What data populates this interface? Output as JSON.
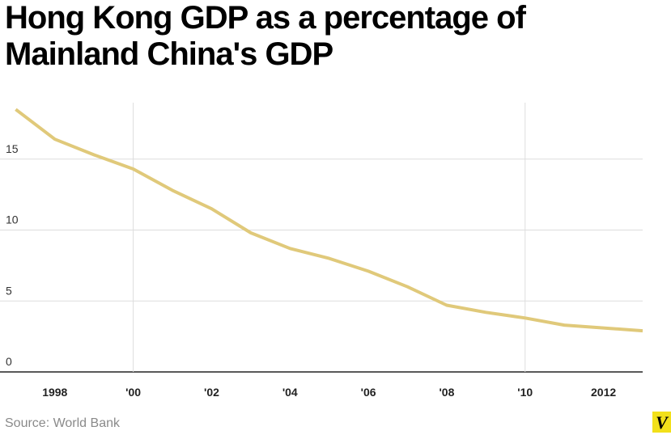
{
  "chart_data": {
    "type": "line",
    "title": "Hong Kong GDP as a percentage of Mainland China's GDP",
    "xlabel": "",
    "ylabel": "",
    "x": [
      1997,
      1998,
      1999,
      2000,
      2001,
      2002,
      2003,
      2004,
      2005,
      2006,
      2007,
      2008,
      2009,
      2010,
      2011,
      2012,
      2013
    ],
    "series": [
      {
        "name": "Hong Kong GDP as % of Mainland China GDP",
        "color": "#e0c97a",
        "values": [
          18.5,
          16.4,
          15.3,
          14.3,
          12.8,
          11.5,
          9.8,
          8.7,
          8.0,
          7.1,
          6.0,
          4.7,
          4.2,
          3.8,
          3.3,
          3.1,
          2.9
        ]
      }
    ],
    "xlim": [
      1996.6,
      2013.0
    ],
    "ylim": [
      0,
      19
    ],
    "yticks": [
      0,
      5,
      10,
      15
    ],
    "ytick_labels": [
      "0",
      "5",
      "10",
      "15"
    ],
    "xticks": [
      1998,
      2000,
      2002,
      2004,
      2006,
      2008,
      2010,
      2012
    ],
    "xtick_labels": [
      "1998",
      "'00",
      "'02",
      "'04",
      "'06",
      "'08",
      "'10",
      "2012"
    ],
    "vertical_gridlines": [
      2000,
      2010
    ],
    "grid": true
  },
  "source": "Source: World Bank",
  "brand": {
    "logo_letter": "V",
    "logo_color": "#f2e01a"
  }
}
